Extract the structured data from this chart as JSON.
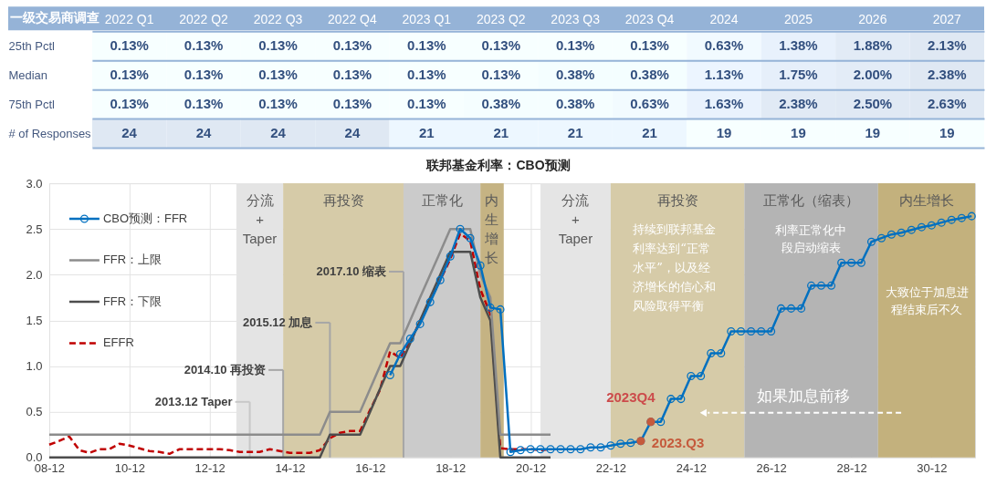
{
  "chart_data": [
    {
      "type": "heatmap",
      "title": "一级交易商调查",
      "categories": [
        "2022 Q1",
        "2022 Q2",
        "2022 Q3",
        "2022 Q4",
        "2023 Q1",
        "2023 Q2",
        "2023 Q3",
        "2023 Q4",
        "2024",
        "2025",
        "2026",
        "2027"
      ],
      "y_categories": [
        "25th Pctl",
        "Median",
        "75th Pctl",
        "# of Responses"
      ],
      "cells": [
        [
          0.13,
          0.13,
          0.13,
          0.13,
          0.13,
          0.13,
          0.13,
          0.13,
          0.63,
          1.38,
          1.88,
          2.13
        ],
        [
          0.13,
          0.13,
          0.13,
          0.13,
          0.13,
          0.13,
          0.38,
          0.38,
          1.13,
          1.75,
          2.0,
          2.38
        ],
        [
          0.13,
          0.13,
          0.13,
          0.13,
          0.13,
          0.38,
          0.38,
          0.63,
          1.63,
          2.38,
          2.5,
          2.63
        ],
        [
          24,
          24,
          24,
          24,
          21,
          21,
          21,
          21,
          19,
          19,
          19,
          19
        ]
      ],
      "cell_labels": [
        [
          "0.13%",
          "0.13%",
          "0.13%",
          "0.13%",
          "0.13%",
          "0.13%",
          "0.13%",
          "0.13%",
          "0.63%",
          "1.38%",
          "1.88%",
          "2.13%"
        ],
        [
          "0.13%",
          "0.13%",
          "0.13%",
          "0.13%",
          "0.13%",
          "0.13%",
          "0.38%",
          "0.38%",
          "1.13%",
          "1.75%",
          "2.00%",
          "2.38%"
        ],
        [
          "0.13%",
          "0.13%",
          "0.13%",
          "0.13%",
          "0.13%",
          "0.38%",
          "0.38%",
          "0.63%",
          "1.63%",
          "2.38%",
          "2.50%",
          "2.63%"
        ],
        [
          "24",
          "24",
          "24",
          "24",
          "21",
          "21",
          "21",
          "21",
          "19",
          "19",
          "19",
          "19"
        ]
      ],
      "grid": "y"
    },
    {
      "type": "line",
      "title": "联邦基金利率：CBO预测",
      "xlim": [
        "2008-12",
        "2032-01"
      ],
      "xticks": [
        {
          "value": "2008-12",
          "label": "08-12"
        },
        {
          "value": "2010-12",
          "label": "10-12"
        },
        {
          "value": "2012-12",
          "label": "12-12"
        },
        {
          "value": "2014-12",
          "label": "14-12"
        },
        {
          "value": "2016-12",
          "label": "16-12"
        },
        {
          "value": "2018-12",
          "label": "18-12"
        },
        {
          "value": "2020-12",
          "label": "20-12"
        },
        {
          "value": "2022-12",
          "label": "22-12"
        },
        {
          "value": "2024-12",
          "label": "24-12"
        },
        {
          "value": "2026-12",
          "label": "26-12"
        },
        {
          "value": "2028-12",
          "label": "28-12"
        },
        {
          "value": "2030-12",
          "label": "30-12"
        }
      ],
      "ylim": [
        0,
        3
      ],
      "yticks": [
        {
          "value": 0,
          "label": "0.0"
        },
        0.5,
        {
          "value": 1,
          "label": "1.0"
        },
        1.5,
        {
          "value": 2,
          "label": "2.0"
        },
        2.5,
        {
          "value": 3,
          "label": "3.0"
        }
      ],
      "grid": true,
      "legend": "top left",
      "series": [
        {
          "name": "CBO预测：FFR",
          "color": "#0070c0",
          "marker": "circle",
          "x": [
            "2017-06",
            "2017-09",
            "2017-12",
            "2018-03",
            "2018-06",
            "2018-09",
            "2018-12",
            "2019-03",
            "2019-06",
            "2019-09",
            "2019-12",
            "2020-03",
            "2020-06",
            "2020-09",
            "2020-12",
            "2021-03",
            "2021-06",
            "2021-09",
            "2021-12",
            "2022-03",
            "2022-06",
            "2022-09",
            "2022-12",
            "2023-03",
            "2023-06",
            "2023-09",
            "2023-12",
            "2024-03",
            "2024-06",
            "2024-09",
            "2024-12",
            "2025-03",
            "2025-06",
            "2025-09",
            "2025-12",
            "2026-03",
            "2026-06",
            "2026-09",
            "2026-12",
            "2027-03",
            "2027-06",
            "2027-09",
            "2027-12",
            "2028-03",
            "2028-06",
            "2028-09",
            "2028-12",
            "2029-03",
            "2029-06",
            "2029-09",
            "2029-12",
            "2030-03",
            "2030-06",
            "2030-09",
            "2030-12",
            "2031-03",
            "2031-06",
            "2031-09",
            "2031-12"
          ],
          "values": [
            0.9,
            1.13,
            1.3,
            1.46,
            1.7,
            1.94,
            2.2,
            2.5,
            2.4,
            2.1,
            1.64,
            1.62,
            0.06,
            0.08,
            0.09,
            0.09,
            0.09,
            0.09,
            0.09,
            0.09,
            0.11,
            0.11,
            0.13,
            0.15,
            0.16,
            0.18,
            0.39,
            0.39,
            0.64,
            0.64,
            0.89,
            0.89,
            1.14,
            1.14,
            1.38,
            1.38,
            1.38,
            1.38,
            1.38,
            1.63,
            1.63,
            1.63,
            1.88,
            1.88,
            1.88,
            2.13,
            2.13,
            2.13,
            2.36,
            2.4,
            2.44,
            2.46,
            2.49,
            2.52,
            2.54,
            2.57,
            2.6,
            2.62,
            2.64
          ]
        },
        {
          "name": "FFR：上限",
          "color": "#8c8c8c",
          "x": [
            "2008-12",
            "2015-09",
            "2015-12",
            "2016-09",
            "2016-12",
            "2017-03",
            "2017-06",
            "2017-09",
            "2017-12",
            "2018-03",
            "2018-06",
            "2018-09",
            "2018-12",
            "2019-06",
            "2019-09",
            "2019-12",
            "2020-03",
            "2021-06"
          ],
          "values": [
            0.25,
            0.25,
            0.5,
            0.5,
            0.75,
            1.0,
            1.25,
            1.25,
            1.5,
            1.75,
            2.0,
            2.25,
            2.5,
            2.5,
            2.0,
            1.75,
            0.25,
            0.25
          ]
        },
        {
          "name": "FFR：下限",
          "color": "#4d4d4d",
          "x": [
            "2008-12",
            "2015-09",
            "2015-12",
            "2016-09",
            "2016-12",
            "2017-03",
            "2017-06",
            "2017-09",
            "2017-12",
            "2018-03",
            "2018-06",
            "2018-09",
            "2018-12",
            "2019-06",
            "2019-09",
            "2019-12",
            "2020-03",
            "2021-06"
          ],
          "values": [
            0,
            0,
            0.25,
            0.25,
            0.5,
            0.75,
            1.0,
            1.0,
            1.25,
            1.5,
            1.75,
            2.0,
            2.25,
            2.25,
            1.75,
            1.5,
            0,
            0
          ]
        },
        {
          "name": "EFFR",
          "color": "#c00000",
          "line_style": "dashed",
          "x": [
            "2008-12",
            "2009-03",
            "2009-06",
            "2009-09",
            "2009-12",
            "2010-03",
            "2010-06",
            "2010-09",
            "2010-12",
            "2011-03",
            "2011-06",
            "2011-09",
            "2011-12",
            "2012-03",
            "2012-06",
            "2012-09",
            "2012-12",
            "2013-03",
            "2013-06",
            "2013-09",
            "2013-12",
            "2014-03",
            "2014-06",
            "2014-09",
            "2014-12",
            "2015-03",
            "2015-06",
            "2015-09",
            "2015-12",
            "2016-03",
            "2016-06",
            "2016-09",
            "2016-12",
            "2017-03",
            "2017-06",
            "2017-09",
            "2017-12",
            "2018-03",
            "2018-06",
            "2018-09",
            "2018-12",
            "2019-03",
            "2019-06",
            "2019-09",
            "2019-12",
            "2020-03",
            "2020-06",
            "2020-09",
            "2020-12",
            "2021-03",
            "2021-06"
          ],
          "values": [
            0.14,
            0.18,
            0.23,
            0.08,
            0.05,
            0.09,
            0.09,
            0.15,
            0.13,
            0.1,
            0.07,
            0.06,
            0.04,
            0.09,
            0.09,
            0.09,
            0.09,
            0.09,
            0.08,
            0.06,
            0.06,
            0.06,
            0.09,
            0.07,
            0.05,
            0.05,
            0.05,
            0.08,
            0.21,
            0.27,
            0.29,
            0.29,
            0.52,
            0.74,
            1.16,
            1.09,
            1.26,
            1.49,
            1.72,
            1.94,
            2.17,
            2.45,
            2.37,
            1.84,
            1.57,
            0.1,
            0.09,
            0.09,
            0.09,
            0.08,
            0.09
          ]
        },
        {
          "type": "scatter",
          "color": "#c55a3c",
          "marker": "circle",
          "x": [
            "2023-09",
            "2023-12"
          ],
          "values": [
            0.18,
            0.39
          ]
        }
      ],
      "bands": [
        {
          "axis": "x",
          "from": "2013-08",
          "to": "2014-10",
          "label": "分流\n+\nTaper",
          "color": "#e4e4e4"
        },
        {
          "axis": "x",
          "from": "2014-10",
          "to": "2017-10",
          "label": "再投资",
          "color": "#d6cba8"
        },
        {
          "axis": "x",
          "from": "2017-10",
          "to": "2019-09",
          "label": "正常化",
          "color": "#cbcbcb"
        },
        {
          "axis": "x",
          "from": "2019-09",
          "to": "2020-04",
          "label": "内生增长",
          "color": "#c5b383"
        },
        {
          "axis": "x",
          "from": "2021-03",
          "to": "2022-12",
          "label": "分流\n+\nTaper",
          "color": "#e5e5e5"
        },
        {
          "axis": "x",
          "from": "2022-12",
          "to": "2026-04",
          "label": "再投资",
          "color": "#d6cba8"
        },
        {
          "axis": "x",
          "from": "2026-04",
          "to": "2029-08",
          "label": "正常化（缩表）",
          "color": "#b4b4b4"
        },
        {
          "axis": "x",
          "from": "2029-08",
          "to": "2032-01",
          "label": "内生增长",
          "color": "#c3b17d"
        }
      ],
      "ref_lines": [
        {
          "axis": "x",
          "value": "2013-12",
          "label": "2013.12 Taper",
          "color": "#c8c8c8"
        },
        {
          "axis": "x",
          "value": "2014-10",
          "label": "2014.10 再投资",
          "color": "#a6a6a6"
        },
        {
          "axis": "x",
          "value": "2015-12",
          "label": "2015.12 加息",
          "color": "#a6a6a6"
        },
        {
          "axis": "x",
          "value": "2017-10",
          "label": "2017.10 缩表",
          "color": "#a6a6a6"
        }
      ],
      "annotations": [
        "持续到联邦基金利率达到“正常水平”，以及经济增长的信心和风险取得平衡",
        "利率正常化中段启动缩表",
        "大致位于加息进程结束后不久",
        "如果加息前移",
        {
          "text": "2023.Q3",
          "x": "2023-09",
          "y": 0.18
        },
        {
          "text": "2023Q4",
          "x": "2023-12",
          "y": 0.39
        }
      ]
    }
  ]
}
